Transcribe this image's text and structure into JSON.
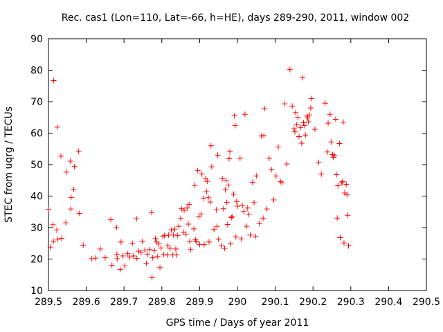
{
  "chart_data": {
    "type": "scatter",
    "title": "Rec. cas1 (Lon=110, Lat=-66, h=HE), days 289-290, 2011, window 002",
    "xlabel": "GPS time / Days of year 2011",
    "ylabel": "STEC from uqrg / TECUs",
    "xlim": [
      289.5,
      290.5
    ],
    "ylim": [
      10,
      90
    ],
    "xticks": [
      289.5,
      289.6,
      289.7,
      289.8,
      289.9,
      290.0,
      290.1,
      290.2,
      290.3,
      290.4,
      290.5
    ],
    "xtick_labels": [
      "289.5",
      "289.6",
      "289.7",
      "289.8",
      "289.9",
      "290",
      "290.1",
      "290.2",
      "290.3",
      "290.4",
      "290.5"
    ],
    "yticks": [
      10,
      20,
      30,
      40,
      50,
      60,
      70,
      80,
      90
    ],
    "ytick_labels": [
      "10",
      "20",
      "30",
      "40",
      "50",
      "60",
      "70",
      "80",
      "90"
    ],
    "grid": false,
    "marker": "+",
    "marker_color": "#ff0000",
    "series": [
      {
        "name": "STEC",
        "points": [
          [
            289.5,
            35.8
          ],
          [
            289.505,
            23.8
          ],
          [
            289.512,
            30.9
          ],
          [
            289.513,
            25.6
          ],
          [
            289.514,
            76.7
          ],
          [
            289.522,
            29.2
          ],
          [
            289.523,
            61.9
          ],
          [
            289.525,
            26.3
          ],
          [
            289.533,
            52.7
          ],
          [
            289.535,
            26.6
          ],
          [
            289.546,
            31.5
          ],
          [
            289.547,
            47.6
          ],
          [
            289.558,
            51.1
          ],
          [
            289.559,
            35.9
          ],
          [
            289.56,
            39.6
          ],
          [
            289.567,
            42.1
          ],
          [
            289.569,
            49.4
          ],
          [
            289.58,
            54.2
          ],
          [
            289.582,
            34.5
          ],
          [
            289.592,
            24.4
          ],
          [
            289.614,
            20.1
          ],
          [
            289.625,
            20.3
          ],
          [
            289.637,
            23.2
          ],
          [
            289.65,
            20.4
          ],
          [
            289.665,
            32.5
          ],
          [
            289.668,
            18.0
          ],
          [
            289.68,
            30.0
          ],
          [
            289.681,
            21.5
          ],
          [
            289.682,
            20.1
          ],
          [
            289.69,
            16.7
          ],
          [
            289.692,
            25.4
          ],
          [
            289.697,
            21.0
          ],
          [
            289.702,
            17.8
          ],
          [
            289.71,
            21.7
          ],
          [
            289.715,
            20.6
          ],
          [
            289.722,
            25.0
          ],
          [
            289.725,
            21.0
          ],
          [
            289.733,
            32.8
          ],
          [
            289.734,
            20.2
          ],
          [
            289.738,
            22.5
          ],
          [
            289.745,
            22.1
          ],
          [
            289.748,
            25.6
          ],
          [
            289.755,
            22.8
          ],
          [
            289.759,
            18.6
          ],
          [
            289.762,
            21.5
          ],
          [
            289.768,
            23.0
          ],
          [
            289.773,
            34.8
          ],
          [
            289.774,
            14.1
          ],
          [
            289.776,
            20.4
          ],
          [
            289.78,
            22.7
          ],
          [
            289.783,
            26.5
          ],
          [
            289.786,
            25.4
          ],
          [
            289.789,
            20.8
          ],
          [
            289.792,
            24.8
          ],
          [
            289.795,
            17.3
          ],
          [
            289.798,
            23.5
          ],
          [
            289.803,
            27.1
          ],
          [
            289.805,
            21.4
          ],
          [
            289.807,
            27.5
          ],
          [
            289.814,
            21.3
          ],
          [
            289.816,
            24.2
          ],
          [
            289.818,
            27.6
          ],
          [
            289.822,
            23.4
          ],
          [
            289.825,
            29.2
          ],
          [
            289.829,
            21.3
          ],
          [
            289.831,
            27.6
          ],
          [
            289.834,
            29.5
          ],
          [
            289.837,
            23.2
          ],
          [
            289.839,
            21.3
          ],
          [
            289.842,
            27.5
          ],
          [
            289.845,
            30.4
          ],
          [
            289.85,
            32.9
          ],
          [
            289.852,
            36.0
          ],
          [
            289.857,
            28.5
          ],
          [
            289.859,
            35.5
          ],
          [
            289.864,
            27.9
          ],
          [
            289.867,
            36.2
          ],
          [
            289.87,
            31.1
          ],
          [
            289.872,
            37.4
          ],
          [
            289.874,
            25.6
          ],
          [
            289.876,
            23.0
          ],
          [
            289.885,
            29.6
          ],
          [
            289.887,
            43.4
          ],
          [
            289.889,
            26.1
          ],
          [
            289.892,
            25.5
          ],
          [
            289.895,
            48.1
          ],
          [
            289.898,
            33.5
          ],
          [
            289.9,
            24.6
          ],
          [
            289.904,
            34.3
          ],
          [
            289.906,
            47.0
          ],
          [
            289.91,
            39.3
          ],
          [
            289.912,
            24.6
          ],
          [
            289.916,
            45.6
          ],
          [
            289.918,
            41.4
          ],
          [
            289.92,
            44.7
          ],
          [
            289.923,
            39.5
          ],
          [
            289.925,
            25.4
          ],
          [
            289.928,
            38.1
          ],
          [
            289.93,
            56.0
          ],
          [
            289.932,
            49.3
          ],
          [
            289.938,
            29.4
          ],
          [
            289.944,
            35.6
          ],
          [
            289.946,
            30.4
          ],
          [
            289.948,
            53.0
          ],
          [
            289.95,
            26.3
          ],
          [
            289.958,
            24.2
          ],
          [
            289.96,
            45.5
          ],
          [
            289.963,
            36.0
          ],
          [
            289.966,
            23.4
          ],
          [
            289.968,
            42.0
          ],
          [
            289.97,
            45.0
          ],
          [
            289.972,
            38.0
          ],
          [
            289.974,
            31.0
          ],
          [
            289.976,
            43.5
          ],
          [
            289.978,
            51.9
          ],
          [
            289.98,
            54.1
          ],
          [
            289.982,
            24.8
          ],
          [
            289.984,
            33.2
          ],
          [
            289.986,
            33.5
          ],
          [
            289.99,
            40.6
          ],
          [
            289.992,
            65.5
          ],
          [
            289.994,
            62.4
          ],
          [
            289.996,
            27.0
          ],
          [
            289.998,
            38.3
          ],
          [
            290.0,
            36.8
          ],
          [
            290.007,
            52.0
          ],
          [
            290.01,
            26.4
          ],
          [
            290.013,
            37.0
          ],
          [
            290.017,
            35.1
          ],
          [
            290.02,
            66.0
          ],
          [
            290.024,
            30.4
          ],
          [
            290.027,
            36.2
          ],
          [
            290.03,
            34.2
          ],
          [
            290.034,
            27.6
          ],
          [
            290.04,
            44.4
          ],
          [
            290.044,
            37.9
          ],
          [
            290.048,
            27.2
          ],
          [
            290.05,
            46.4
          ],
          [
            290.058,
            31.3
          ],
          [
            290.063,
            59.1
          ],
          [
            290.068,
            33.0
          ],
          [
            290.07,
            59.2
          ],
          [
            290.072,
            67.8
          ],
          [
            290.078,
            35.9
          ],
          [
            290.084,
            52.0
          ],
          [
            290.09,
            48.4
          ],
          [
            290.096,
            38.8
          ],
          [
            290.102,
            46.4
          ],
          [
            290.108,
            55.6
          ],
          [
            290.114,
            44.6
          ],
          [
            290.118,
            44.2
          ],
          [
            290.125,
            69.3
          ],
          [
            290.131,
            50.2
          ],
          [
            290.139,
            80.2
          ],
          [
            290.145,
            68.6
          ],
          [
            290.15,
            61.4
          ],
          [
            290.152,
            60.4
          ],
          [
            290.154,
            66.5
          ],
          [
            290.157,
            62.7
          ],
          [
            290.16,
            65.0
          ],
          [
            290.163,
            58.9
          ],
          [
            290.167,
            61.8
          ],
          [
            290.17,
            56.8
          ],
          [
            290.172,
            77.6
          ],
          [
            290.175,
            63.3
          ],
          [
            290.178,
            62.4
          ],
          [
            290.18,
            59.4
          ],
          [
            290.184,
            65.4
          ],
          [
            290.186,
            64.8
          ],
          [
            290.188,
            63.6
          ],
          [
            290.19,
            65.8
          ],
          [
            290.194,
            68.0
          ],
          [
            290.196,
            71.0
          ],
          [
            290.205,
            61.2
          ],
          [
            290.215,
            50.7
          ],
          [
            290.222,
            47.0
          ],
          [
            290.232,
            69.5
          ],
          [
            290.238,
            54.0
          ],
          [
            290.24,
            63.2
          ],
          [
            290.245,
            66.0
          ],
          [
            290.248,
            57.2
          ],
          [
            290.252,
            53.2
          ],
          [
            290.254,
            52.3
          ],
          [
            290.256,
            53.0
          ],
          [
            290.26,
            64.4
          ],
          [
            290.262,
            46.8
          ],
          [
            290.264,
            33.0
          ],
          [
            290.266,
            43.3
          ],
          [
            290.27,
            56.7
          ],
          [
            290.272,
            26.8
          ],
          [
            290.276,
            44.2
          ],
          [
            290.278,
            44.6
          ],
          [
            290.28,
            63.5
          ],
          [
            290.282,
            25.1
          ],
          [
            290.284,
            41.0
          ],
          [
            290.288,
            43.7
          ],
          [
            290.29,
            40.4
          ],
          [
            290.292,
            33.9
          ],
          [
            290.294,
            24.2
          ]
        ]
      }
    ]
  }
}
